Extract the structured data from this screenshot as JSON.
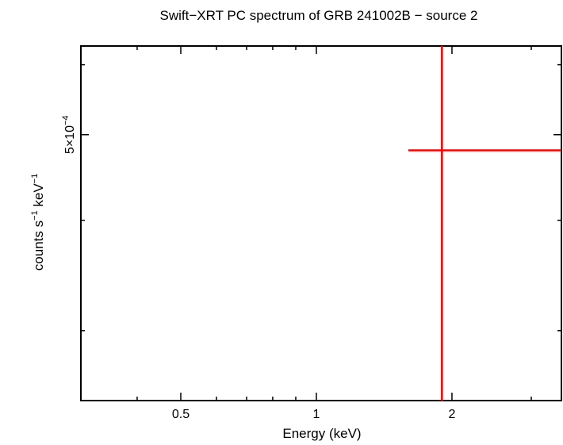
{
  "chart_data": {
    "type": "scatter",
    "title": "Swift−XRT PC spectrum of GRB 241002B − source 2",
    "xlabel": "Energy (keV)",
    "ylabel": {
      "parts": [
        {
          "text": "counts s",
          "sup": false
        },
        {
          "text": "−1",
          "sup": true
        },
        {
          "text": " keV",
          "sup": false
        },
        {
          "text": "−1",
          "sup": true
        }
      ]
    },
    "x_scale": "log",
    "y_scale": "log",
    "xlim": [
      0.3,
      3.5
    ],
    "ylim": [
      0.00025,
      0.00063
    ],
    "x_ticks": [
      {
        "value": 0.5,
        "label": "0.5"
      },
      {
        "value": 1,
        "label": "1"
      },
      {
        "value": 2,
        "label": "2"
      }
    ],
    "y_ticks": [
      {
        "value": 0.0005,
        "label_base": "5×10",
        "label_exp": "−4"
      }
    ],
    "series": [
      {
        "color": "#ff0000",
        "points": [
          {
            "x": 1.9,
            "y": 0.00048,
            "xerr": [
              1.6,
              3.5
            ],
            "yerr": [
              0.00025,
              0.00063
            ]
          }
        ]
      }
    ],
    "frame_color": "#000000"
  }
}
